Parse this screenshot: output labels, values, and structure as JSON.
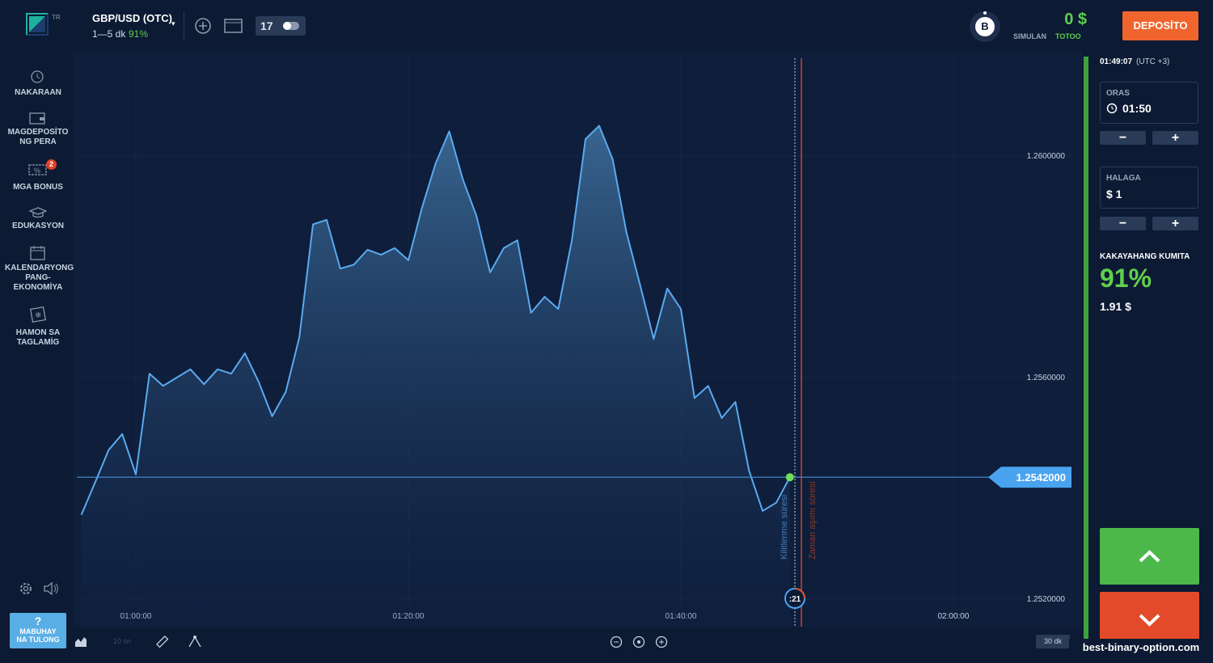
{
  "header": {
    "logo_badge": "TR",
    "asset": "GBP/USD (OTC)",
    "duration": "1—5 dk",
    "payout": "91%",
    "avatar": "B",
    "balance": "0 $",
    "account_mode": "SIMULAN",
    "account_action": "TOTOO",
    "deposit_button": "DEPOSİTO"
  },
  "sidebar": {
    "items": [
      {
        "label": "NAKARAAN"
      },
      {
        "label": "MAGDEPOSİTO NG PERA"
      },
      {
        "label": "MGA BONUS",
        "badge": "2"
      },
      {
        "label": "EDUKASYON"
      },
      {
        "label": "KALENDARYONG PANG-EKONOMİYA"
      },
      {
        "label": "HAMON SA TAGLAMİG"
      }
    ],
    "help": {
      "icon": "?",
      "label": "MABUHAY NA TULONG"
    }
  },
  "trade_panel": {
    "clock": "01:49:07",
    "timezone": "(UTC +3)",
    "time_label": "ORAS",
    "time_value": "01:50",
    "amount_label": "HALAGA",
    "amount_value": "$ 1",
    "profit_label": "KAKAYAHANG KUMITA",
    "profit_percent": "91%",
    "profit_amount": "1.91 $"
  },
  "chart_data": {
    "type": "area",
    "color": "#5aaaf0",
    "grid": true,
    "x": [
      "00:56:00",
      "00:57:00",
      "00:58:00",
      "00:59:00",
      "01:00:00",
      "01:01:00",
      "01:02:00",
      "01:03:00",
      "01:04:00",
      "01:05:00",
      "01:06:00",
      "01:07:00",
      "01:08:00",
      "01:09:00",
      "01:10:00",
      "01:11:00",
      "01:12:00",
      "01:13:00",
      "01:14:00",
      "01:15:00",
      "01:16:00",
      "01:17:00",
      "01:18:00",
      "01:19:00",
      "01:20:00",
      "01:21:00",
      "01:22:00",
      "01:23:00",
      "01:24:00",
      "01:25:00",
      "01:26:00",
      "01:27:00",
      "01:28:00",
      "01:29:00",
      "01:30:00",
      "01:31:00",
      "01:32:00",
      "01:33:00",
      "01:34:00",
      "01:35:00",
      "01:36:00",
      "01:37:00",
      "01:38:00",
      "01:39:00",
      "01:40:00",
      "01:41:00",
      "01:42:00",
      "01:43:00",
      "01:44:00",
      "01:45:00",
      "01:46:00",
      "01:47:00",
      "01:48:00"
    ],
    "values": [
      1.25352,
      1.2541,
      1.25469,
      1.25498,
      1.25425,
      1.25607,
      1.25585,
      1.256,
      1.25615,
      1.25588,
      1.25615,
      1.25607,
      1.25644,
      1.25593,
      1.2553,
      1.25574,
      1.25673,
      1.25877,
      1.25885,
      1.25797,
      1.25804,
      1.25831,
      1.25822,
      1.25834,
      1.25812,
      1.25907,
      1.25987,
      1.26045,
      1.25958,
      1.25892,
      1.2579,
      1.25834,
      1.25848,
      1.25717,
      1.25746,
      1.25724,
      1.25848,
      1.26031,
      1.26055,
      1.25994,
      1.25863,
      1.25768,
      1.2567,
      1.25761,
      1.25724,
      1.25563,
      1.25585,
      1.25527,
      1.25556,
      1.25432,
      1.25359,
      1.25374,
      1.2542
    ],
    "xlim": [
      "00:55:40",
      "02:08:40"
    ],
    "xticks": [
      "01:00:00",
      "01:20:00",
      "01:40:00",
      "02:00:00"
    ],
    "ylim": [
      1.2515,
      1.2618
    ],
    "yticks": [
      {
        "value": 1.252,
        "label": "1.2520000"
      },
      {
        "value": 1.256,
        "label": "1.2560000"
      },
      {
        "value": 1.26,
        "label": "1.2600000"
      }
    ],
    "current_price": {
      "value": 1.2542,
      "label": "1.2542000"
    },
    "lock_label": "Kilitlenme süresi",
    "expiry_label": "Zaman aşımı süresi",
    "timer": ":21",
    "tick_interval": "10 sn",
    "period": "30 dk"
  },
  "watermark": "best-binary-option.com"
}
